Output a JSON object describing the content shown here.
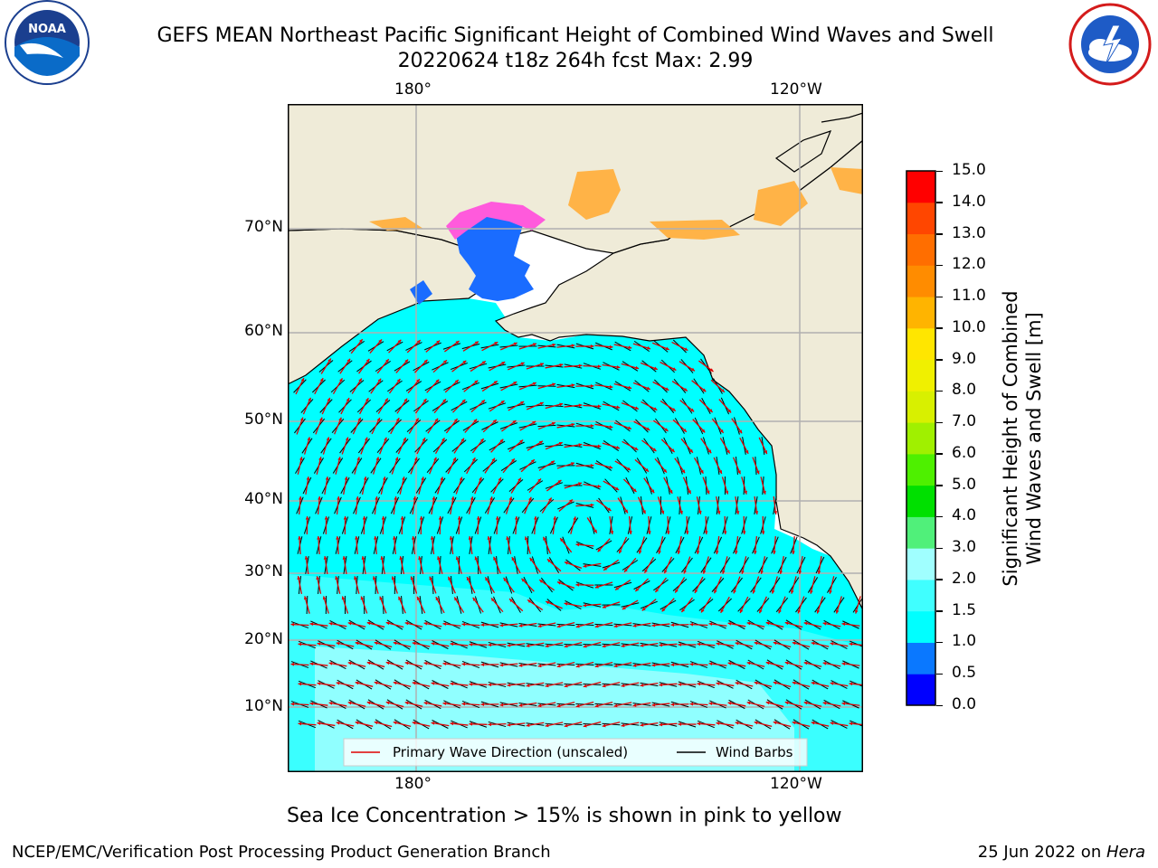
{
  "header": {
    "title_line1": "GEFS MEAN Northeast Pacific Significant Height of Combined Wind Waves and Swell",
    "title_line2": "20220624 t18z 264h fcst   Max: 2.99"
  },
  "logos": {
    "left": {
      "icon": "noaa-logo",
      "text": "NOAA"
    },
    "right": {
      "icon": "nws-logo",
      "text": "NATIONAL WEATHER SERVICE"
    }
  },
  "map": {
    "lon_labels_top": [
      "180°",
      "120°W"
    ],
    "lon_labels_bottom": [
      "180°",
      "120°W"
    ],
    "lat_labels": [
      "70°N",
      "60°N",
      "50°N",
      "40°N",
      "30°N",
      "20°N",
      "10°N"
    ],
    "colors": {
      "ocean_low": "#00ffff",
      "ocean_mid": "#40ffff",
      "ocean_high": "#a0ffff",
      "land": "#efebd8",
      "ice_blue": "#1a6cff",
      "ice_pink": "#ff5adc",
      "ice_orange": "#ffb347",
      "grid": "#b0b0b0",
      "wave_arrow": "#e00000",
      "barb": "#000000"
    },
    "legend": {
      "wave_label": "Primary Wave Direction (unscaled)",
      "barb_label": "Wind Barbs"
    }
  },
  "colorbar": {
    "label_line1": "Significant Height of Combined",
    "label_line2": "Wind Waves and Swell [m]",
    "ticks": [
      "0.0",
      "0.5",
      "1.0",
      "1.5",
      "2.0",
      "3.0",
      "4.0",
      "5.0",
      "6.0",
      "7.0",
      "8.0",
      "9.0",
      "10.0",
      "11.0",
      "12.0",
      "13.0",
      "14.0",
      "15.0"
    ],
    "colors": [
      "#0000ff",
      "#0a78ff",
      "#00ffff",
      "#40ffff",
      "#a0ffff",
      "#50f07a",
      "#00e000",
      "#4ef000",
      "#a0f000",
      "#d8f000",
      "#f0f000",
      "#ffe600",
      "#ffb400",
      "#ff8c00",
      "#ff6e00",
      "#ff4600",
      "#ff0000"
    ]
  },
  "caption": "Sea Ice Concentration > 15% is shown in pink to yellow",
  "footer": {
    "left": "NCEP/EMC/Verification Post Processing Product Generation Branch",
    "right_date": "25 Jun 2022 on ",
    "right_host": "Hera"
  }
}
